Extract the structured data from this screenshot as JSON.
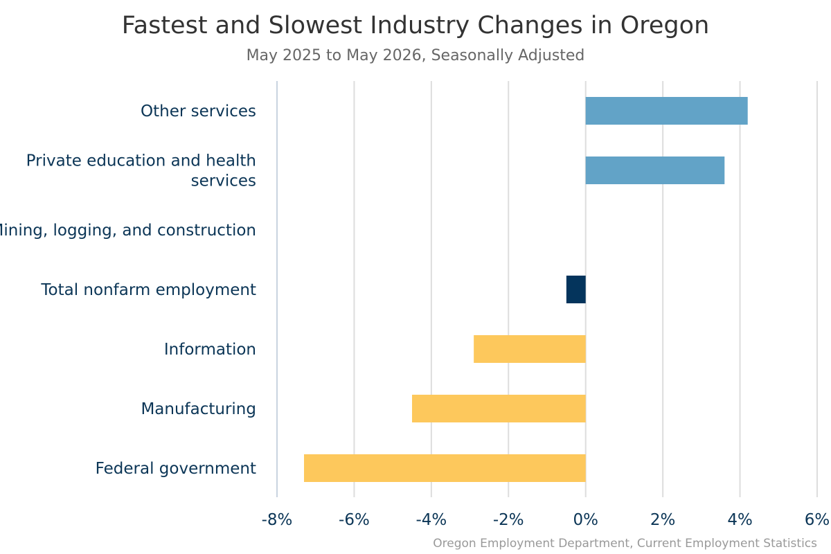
{
  "colors": {
    "positive": "#62a3c7",
    "total": "#04345c",
    "negative": "#fdc85c",
    "gridline": "#dddddd",
    "axis_line": "#c9d3e0"
  },
  "chart_data": {
    "type": "bar",
    "orientation": "horizontal",
    "title": "Fastest and Slowest Industry Changes in Oregon",
    "subtitle": "May 2025 to May 2026, Seasonally Adjusted",
    "source": "Oregon Employment Department, Current Employment Statistics",
    "categories": [
      [
        "Other services"
      ],
      [
        "Private education and health",
        "services"
      ],
      [
        "Mining, logging, and construction"
      ],
      [
        "Total nonfarm employment"
      ],
      [
        "Information"
      ],
      [
        "Manufacturing"
      ],
      [
        "Federal government"
      ]
    ],
    "values": [
      4.2,
      3.6,
      0.0,
      -0.5,
      -2.9,
      -4.5,
      -7.3
    ],
    "bar_color_keys": [
      "positive",
      "positive",
      "positive",
      "total",
      "negative",
      "negative",
      "negative"
    ],
    "xlim": [
      -8,
      6
    ],
    "xticks": [
      -8,
      -6,
      -4,
      -2,
      0,
      2,
      4,
      6
    ],
    "xtick_labels": [
      "-8%",
      "-6%",
      "-4%",
      "-2%",
      "0%",
      "2%",
      "4%",
      "6%"
    ],
    "value_unit": "%",
    "grid": true
  }
}
